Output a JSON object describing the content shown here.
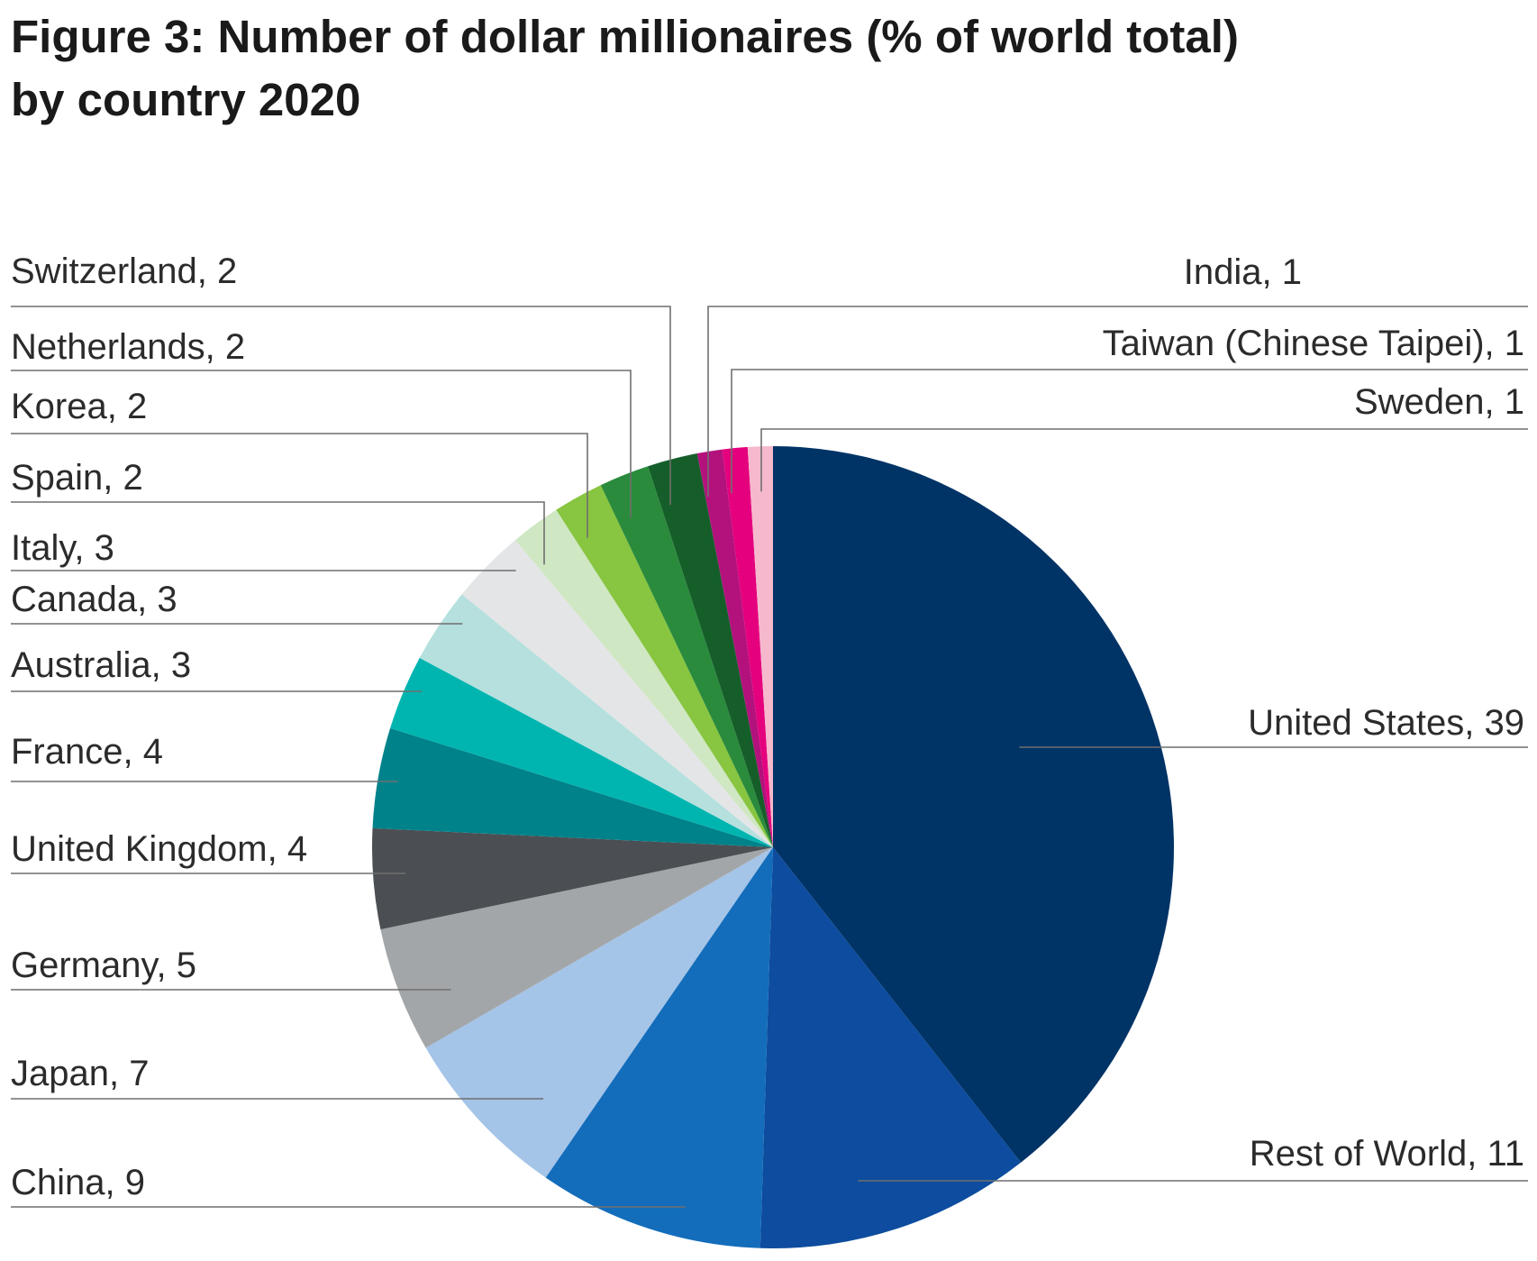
{
  "figure": {
    "title_line1": "Figure 3: Number of dollar millionaires (% of world total)",
    "title_line2": "by country 2020"
  },
  "chart_data": {
    "type": "pie",
    "title": "Figure 3: Number of dollar millionaires (% of world total) by country 2020",
    "units": "% of world total",
    "start_angle": "12 o'clock, clockwise",
    "slices": [
      {
        "label": "United States",
        "value": 39,
        "color": "#003366"
      },
      {
        "label": "Rest of World",
        "value": 11,
        "color": "#0d4c9e"
      },
      {
        "label": "China",
        "value": 9,
        "color": "#136dbb"
      },
      {
        "label": "Japan",
        "value": 7,
        "color": "#a4c4e8"
      },
      {
        "label": "Germany",
        "value": 5,
        "color": "#a3a6a8"
      },
      {
        "label": "United Kingdom",
        "value": 4,
        "color": "#4b4f53"
      },
      {
        "label": "France",
        "value": 4,
        "color": "#00828a"
      },
      {
        "label": "Australia",
        "value": 3,
        "color": "#00b5b0"
      },
      {
        "label": "Canada",
        "value": 3,
        "color": "#b5e0de"
      },
      {
        "label": "Italy",
        "value": 3,
        "color": "#e4e5e6"
      },
      {
        "label": "Spain",
        "value": 2,
        "color": "#cfe7c2"
      },
      {
        "label": "Korea",
        "value": 2,
        "color": "#88c540"
      },
      {
        "label": "Netherlands",
        "value": 2,
        "color": "#2a8b3c"
      },
      {
        "label": "Switzerland",
        "value": 2,
        "color": "#155e2a"
      },
      {
        "label": "India",
        "value": 1,
        "color": "#b3127d"
      },
      {
        "label": "Taiwan (Chinese Taipei)",
        "value": 1,
        "color": "#e5007e"
      },
      {
        "label": "Sweden",
        "value": 1,
        "color": "#f6b8cd"
      }
    ]
  }
}
